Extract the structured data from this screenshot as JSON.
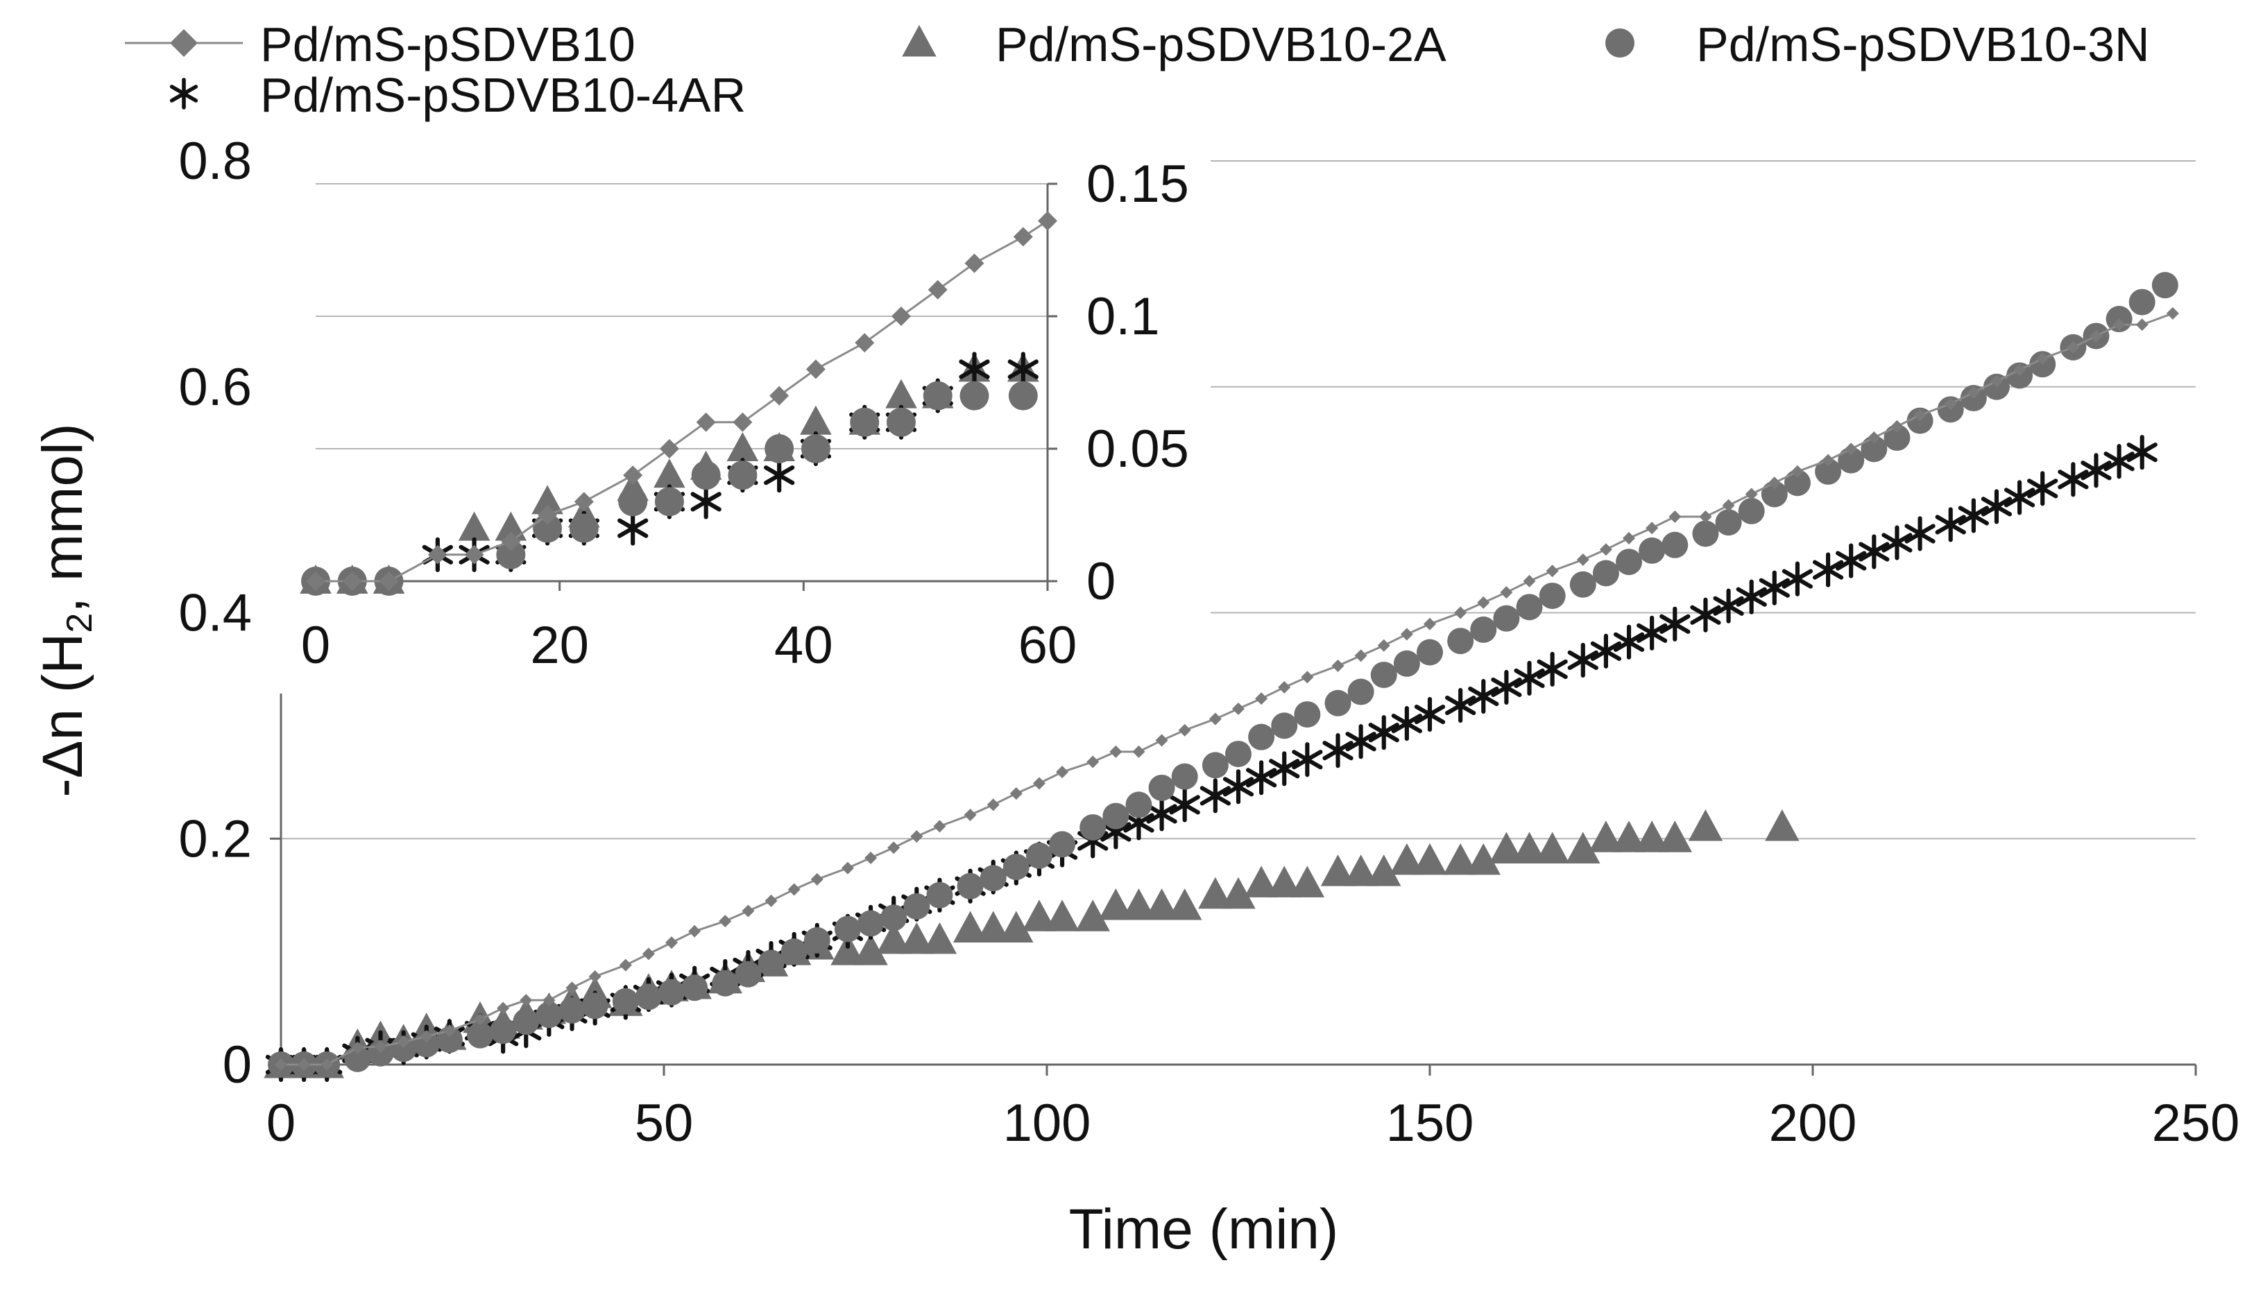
{
  "chart_data": [
    {
      "type": "scatter",
      "xlabel": "Time (min)",
      "ylabel_parts": [
        "-Δn (H",
        "2",
        ", mmol)"
      ],
      "xlim": [
        0,
        250
      ],
      "ylim": [
        0,
        0.8
      ],
      "xticks": [
        "0",
        "50",
        "100",
        "150",
        "200",
        "250"
      ],
      "yticks": [
        "0",
        "0.2",
        "0.4",
        "0.6",
        "0.8"
      ],
      "grid": true,
      "legend_position": "top",
      "series": [
        {
          "name": "Pd/mS-pSDVB10",
          "marker": "diamond",
          "line": true,
          "color": "#7a7a7a",
          "x": [
            0,
            3,
            6,
            10,
            13,
            16,
            19,
            22,
            26,
            29,
            32,
            35,
            38,
            41,
            45,
            48,
            51,
            54,
            58,
            61,
            64,
            67,
            70,
            74,
            77,
            80,
            83,
            86,
            90,
            93,
            96,
            99,
            102,
            106,
            109,
            112,
            115,
            118,
            122,
            125,
            128,
            131,
            134,
            138,
            141,
            144,
            147,
            150,
            154,
            157,
            160,
            163,
            166,
            170,
            173,
            176,
            179,
            182,
            186,
            189,
            192,
            195,
            198,
            202,
            205,
            208,
            211,
            214,
            218,
            221,
            224,
            227,
            230,
            234,
            237,
            240,
            243,
            247
          ],
          "y": [
            0,
            0,
            0,
            0.015,
            0.016,
            0.02,
            0.025,
            0.03,
            0.04,
            0.05,
            0.057,
            0.057,
            0.068,
            0.078,
            0.088,
            0.098,
            0.108,
            0.118,
            0.127,
            0.136,
            0.145,
            0.155,
            0.164,
            0.174,
            0.183,
            0.192,
            0.202,
            0.211,
            0.221,
            0.23,
            0.24,
            0.249,
            0.259,
            0.268,
            0.277,
            0.277,
            0.287,
            0.296,
            0.306,
            0.315,
            0.324,
            0.334,
            0.343,
            0.353,
            0.362,
            0.371,
            0.381,
            0.39,
            0.4,
            0.409,
            0.418,
            0.428,
            0.437,
            0.447,
            0.456,
            0.466,
            0.475,
            0.485,
            0.485,
            0.495,
            0.505,
            0.515,
            0.525,
            0.535,
            0.545,
            0.555,
            0.565,
            0.575,
            0.585,
            0.595,
            0.605,
            0.615,
            0.625,
            0.635,
            0.645,
            0.655,
            0.655,
            0.665
          ]
        },
        {
          "name": "Pd/mS-pSDVB10-2A",
          "marker": "triangle",
          "line": false,
          "color": "#6f6f6f",
          "x": [
            0,
            3,
            6,
            10,
            13,
            16,
            19,
            22,
            26,
            29,
            32,
            35,
            38,
            41,
            45,
            48,
            51,
            54,
            58,
            61,
            64,
            67,
            70,
            74,
            77,
            80,
            83,
            86,
            90,
            93,
            96,
            99,
            102,
            106,
            109,
            112,
            115,
            118,
            122,
            125,
            128,
            131,
            134,
            138,
            141,
            144,
            147,
            150,
            154,
            157,
            160,
            163,
            166,
            170,
            173,
            176,
            179,
            182,
            186,
            196
          ],
          "y": [
            0,
            0,
            0,
            0.016,
            0.023,
            0.02,
            0.03,
            0.025,
            0.04,
            0.035,
            0.043,
            0.048,
            0.055,
            0.062,
            0.055,
            0.065,
            0.068,
            0.07,
            0.075,
            0.085,
            0.09,
            0.1,
            0.105,
            0.1,
            0.1,
            0.11,
            0.11,
            0.11,
            0.12,
            0.12,
            0.12,
            0.13,
            0.13,
            0.13,
            0.14,
            0.14,
            0.14,
            0.14,
            0.15,
            0.15,
            0.16,
            0.16,
            0.16,
            0.17,
            0.17,
            0.17,
            0.18,
            0.18,
            0.18,
            0.18,
            0.19,
            0.19,
            0.19,
            0.19,
            0.2,
            0.2,
            0.2,
            0.2,
            0.21,
            0.21
          ]
        },
        {
          "name": "Pd/mS-pSDVB10-3N",
          "marker": "circle",
          "line": false,
          "color": "#6f6f6f",
          "x": [
            0,
            3,
            6,
            10,
            13,
            16,
            19,
            22,
            26,
            29,
            32,
            35,
            38,
            41,
            45,
            48,
            51,
            54,
            58,
            61,
            64,
            67,
            70,
            74,
            77,
            80,
            83,
            86,
            90,
            93,
            96,
            99,
            102,
            106,
            109,
            112,
            115,
            118,
            122,
            125,
            128,
            131,
            134,
            138,
            141,
            144,
            147,
            150,
            154,
            157,
            160,
            163,
            166,
            170,
            173,
            176,
            179,
            182,
            186,
            189,
            192,
            195,
            198,
            202,
            205,
            208,
            211,
            214,
            218,
            221,
            224,
            227,
            230,
            234,
            237,
            240,
            243,
            246
          ],
          "y": [
            0,
            0,
            0,
            0.005,
            0.01,
            0.014,
            0.018,
            0.022,
            0.026,
            0.03,
            0.038,
            0.044,
            0.048,
            0.052,
            0.056,
            0.06,
            0.064,
            0.068,
            0.072,
            0.08,
            0.09,
            0.1,
            0.11,
            0.12,
            0.125,
            0.13,
            0.14,
            0.15,
            0.158,
            0.165,
            0.175,
            0.185,
            0.195,
            0.21,
            0.22,
            0.23,
            0.245,
            0.255,
            0.265,
            0.275,
            0.29,
            0.3,
            0.31,
            0.32,
            0.33,
            0.345,
            0.355,
            0.365,
            0.375,
            0.385,
            0.395,
            0.405,
            0.415,
            0.425,
            0.435,
            0.445,
            0.455,
            0.46,
            0.47,
            0.48,
            0.49,
            0.505,
            0.515,
            0.525,
            0.535,
            0.545,
            0.555,
            0.57,
            0.58,
            0.59,
            0.6,
            0.61,
            0.62,
            0.635,
            0.645,
            0.66,
            0.675,
            0.69
          ]
        },
        {
          "name": "Pd/mS-pSDVB10-4AR",
          "marker": "asterisk",
          "line": false,
          "color": "#111111",
          "x": [
            0,
            3,
            6,
            10,
            13,
            16,
            19,
            22,
            26,
            29,
            32,
            35,
            38,
            41,
            45,
            48,
            51,
            54,
            58,
            61,
            64,
            67,
            70,
            74,
            77,
            80,
            83,
            86,
            90,
            93,
            96,
            99,
            102,
            106,
            109,
            112,
            115,
            118,
            122,
            125,
            128,
            131,
            134,
            138,
            141,
            144,
            147,
            150,
            154,
            157,
            160,
            163,
            166,
            170,
            173,
            176,
            179,
            182,
            186,
            189,
            192,
            195,
            198,
            202,
            205,
            208,
            211,
            214,
            218,
            221,
            224,
            227,
            230,
            234,
            237,
            240,
            243
          ],
          "y": [
            0,
            0,
            0,
            0.01,
            0.015,
            0.015,
            0.02,
            0.025,
            0.03,
            0.025,
            0.03,
            0.04,
            0.045,
            0.05,
            0.055,
            0.062,
            0.066,
            0.072,
            0.078,
            0.086,
            0.094,
            0.102,
            0.11,
            0.118,
            0.126,
            0.134,
            0.142,
            0.15,
            0.158,
            0.166,
            0.174,
            0.182,
            0.19,
            0.198,
            0.206,
            0.214,
            0.222,
            0.23,
            0.238,
            0.246,
            0.254,
            0.262,
            0.27,
            0.278,
            0.286,
            0.294,
            0.302,
            0.31,
            0.318,
            0.326,
            0.334,
            0.342,
            0.35,
            0.358,
            0.366,
            0.374,
            0.382,
            0.39,
            0.398,
            0.406,
            0.414,
            0.422,
            0.43,
            0.438,
            0.446,
            0.454,
            0.462,
            0.47,
            0.478,
            0.486,
            0.494,
            0.502,
            0.51,
            0.518,
            0.526,
            0.534,
            0.542
          ]
        }
      ]
    },
    {
      "type": "scatter",
      "role": "inset",
      "xlim": [
        0,
        60
      ],
      "ylim": [
        0,
        0.15
      ],
      "xticks": [
        "0",
        "20",
        "40",
        "60"
      ],
      "yticks": [
        "0",
        "0.05",
        "0.1",
        "0.15"
      ],
      "yaxis_side": "right",
      "grid": true,
      "series": [
        {
          "name": "Pd/mS-pSDVB10",
          "marker": "diamond",
          "line": true,
          "x": [
            0,
            3,
            6,
            10,
            13,
            16,
            19,
            22,
            26,
            29,
            32,
            35,
            38,
            41,
            45,
            48,
            51,
            54,
            58,
            60
          ],
          "y": [
            0,
            0,
            0,
            0.01,
            0.01,
            0.015,
            0.025,
            0.03,
            0.04,
            0.05,
            0.06,
            0.06,
            0.07,
            0.08,
            0.09,
            0.1,
            0.11,
            0.12,
            0.13,
            0.136
          ]
        },
        {
          "name": "Pd/mS-pSDVB10-2A",
          "marker": "triangle",
          "line": false,
          "x": [
            0,
            3,
            6,
            13,
            16,
            19,
            22,
            26,
            29,
            32,
            35,
            38,
            41,
            45,
            48,
            51,
            54,
            58
          ],
          "y": [
            0,
            0,
            0,
            0.02,
            0.02,
            0.03,
            0.025,
            0.035,
            0.04,
            0.043,
            0.05,
            0.05,
            0.06,
            0.06,
            0.07,
            0.07,
            0.08,
            0.08
          ]
        },
        {
          "name": "Pd/mS-pSDVB10-3N",
          "marker": "circle",
          "line": false,
          "x": [
            0,
            3,
            6,
            16,
            19,
            22,
            26,
            29,
            32,
            35,
            38,
            41,
            45,
            48,
            51,
            54,
            58
          ],
          "y": [
            0,
            0,
            0,
            0.01,
            0.02,
            0.02,
            0.03,
            0.03,
            0.04,
            0.04,
            0.05,
            0.05,
            0.06,
            0.06,
            0.07,
            0.07,
            0.07
          ]
        },
        {
          "name": "Pd/mS-pSDVB10-4AR",
          "marker": "asterisk",
          "line": false,
          "x": [
            10,
            13,
            16,
            19,
            22,
            26,
            29,
            32,
            35,
            38,
            41,
            45,
            48,
            51,
            54,
            58
          ],
          "y": [
            0.01,
            0.01,
            0.01,
            0.02,
            0.02,
            0.02,
            0.03,
            0.03,
            0.04,
            0.04,
            0.05,
            0.06,
            0.06,
            0.07,
            0.08,
            0.08
          ]
        }
      ]
    }
  ]
}
